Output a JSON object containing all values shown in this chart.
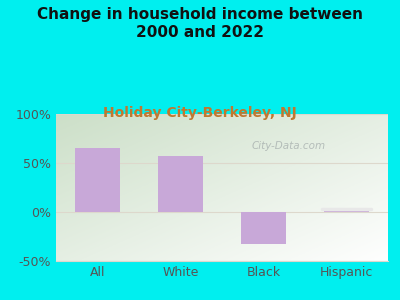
{
  "categories": [
    "All",
    "White",
    "Black",
    "Hispanic"
  ],
  "values": [
    65,
    57,
    -33,
    3
  ],
  "bar_color": "#c8a8d8",
  "title": "Change in household income between\n2000 and 2022",
  "subtitle": "Holiday City-Berkeley, NJ",
  "title_color": "#111111",
  "subtitle_color": "#c07830",
  "background_color": "#00efef",
  "ytick_color": "#555555",
  "xtick_color": "#555555",
  "ylim": [
    -50,
    100
  ],
  "yticks": [
    -50,
    0,
    50,
    100
  ],
  "ytick_labels": [
    "-50%",
    "0%",
    "50%",
    "100%"
  ],
  "grid_color": "#ddd8cc",
  "title_fontsize": 11,
  "subtitle_fontsize": 10,
  "tick_fontsize": 9,
  "watermark": "City-Data.com",
  "plot_bg_colors": [
    "#cce0c8",
    "#e8f4e0",
    "#f0f8ec",
    "#f8fff8"
  ],
  "hispanic_line_color": "#e8e8e8"
}
